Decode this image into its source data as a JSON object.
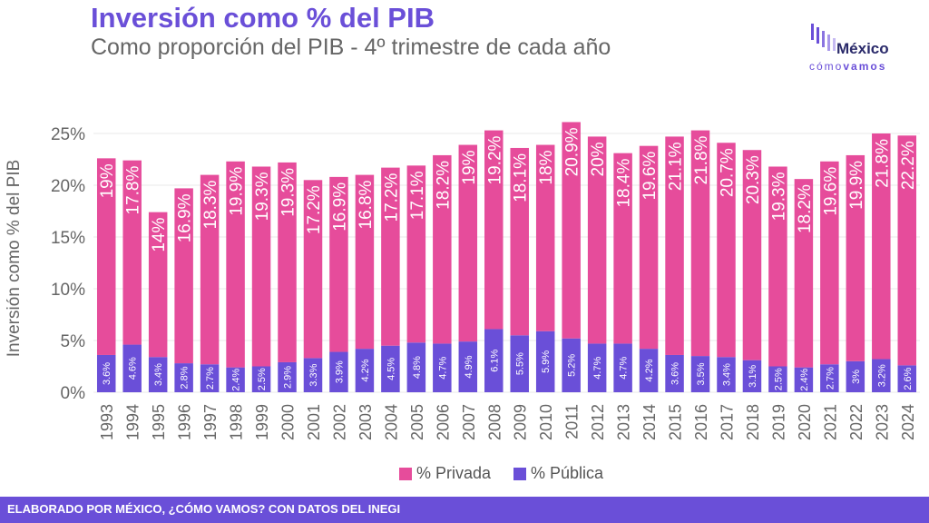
{
  "header": {
    "title": "Inversión como % del PIB",
    "subtitle": "Como proporción del PIB - 4º trimestre de cada año"
  },
  "logo": {
    "word": "México",
    "sub_light": "cómo",
    "sub_bold": "vamos"
  },
  "footer": {
    "text": "ELABORADO POR MÉXICO, ¿CÓMO VAMOS? CON DATOS DEL INEGI"
  },
  "colors": {
    "privada": "#e64c9b",
    "publica": "#6a4fd8",
    "accent": "#6a4fd8"
  },
  "chart_data": {
    "type": "bar",
    "stacked": true,
    "categories": [
      "1993",
      "1994",
      "1995",
      "1996",
      "1997",
      "1998",
      "1999",
      "2000",
      "2001",
      "2002",
      "2003",
      "2004",
      "2005",
      "2006",
      "2007",
      "2008",
      "2009",
      "2010",
      "2011",
      "2012",
      "2013",
      "2014",
      "2015",
      "2016",
      "2017",
      "2018",
      "2019",
      "2020",
      "2021",
      "2022",
      "2023",
      "2024"
    ],
    "series": [
      {
        "name": "% Pública",
        "values": [
          3.6,
          4.6,
          3.4,
          2.8,
          2.7,
          2.4,
          2.5,
          2.9,
          3.3,
          3.9,
          4.2,
          4.5,
          4.8,
          4.7,
          4.9,
          6.1,
          5.5,
          5.9,
          5.2,
          4.7,
          4.7,
          4.2,
          3.6,
          3.5,
          3.4,
          3.1,
          2.5,
          2.4,
          2.7,
          3,
          3.2,
          2.6
        ],
        "labels": [
          "3.6%",
          "4.6%",
          "3.4%",
          "2.8%",
          "2.7%",
          "2.4%",
          "2.5%",
          "2.9%",
          "3.3%",
          "3.9%",
          "4.2%",
          "4.5%",
          "4.8%",
          "4.7%",
          "4.9%",
          "6.1%",
          "5.5%",
          "5.9%",
          "5.2%",
          "4.7%",
          "4.7%",
          "4.2%",
          "3.6%",
          "3.5%",
          "3.4%",
          "3.1%",
          "2.5%",
          "2.4%",
          "2.7%",
          "3%",
          "3.2%",
          "2.6%"
        ]
      },
      {
        "name": "% Privada",
        "values": [
          19,
          17.8,
          14,
          16.9,
          18.3,
          19.9,
          19.3,
          19.3,
          17.2,
          16.9,
          16.8,
          17.2,
          17.1,
          18.2,
          19,
          19.2,
          18.1,
          18,
          20.9,
          20,
          18.4,
          19.6,
          21.1,
          21.8,
          20.7,
          20.3,
          19.3,
          18.2,
          19.6,
          19.9,
          21.8,
          22.2
        ],
        "labels": [
          "19%",
          "17.8%",
          "14%",
          "16.9%",
          "18.3%",
          "19.9%",
          "19.3%",
          "19.3%",
          "17.2%",
          "16.9%",
          "16.8%",
          "17.2%",
          "17.1%",
          "18.2%",
          "19%",
          "19.2%",
          "18.1%",
          "18%",
          "20.9%",
          "20%",
          "18.4%",
          "19.6%",
          "21.1%",
          "21.8%",
          "20.7%",
          "20.3%",
          "19.3%",
          "18.2%",
          "19.6%",
          "19.9%",
          "21.8%",
          "22.2%"
        ]
      }
    ],
    "ylabel": "Inversión como % del PIB",
    "ylim": [
      0,
      25
    ],
    "yticks": [
      "0%",
      "5%",
      "10%",
      "15%",
      "20%",
      "25%"
    ],
    "legend": [
      "% Privada",
      "% Pública"
    ],
    "legend_position": "bottom"
  }
}
